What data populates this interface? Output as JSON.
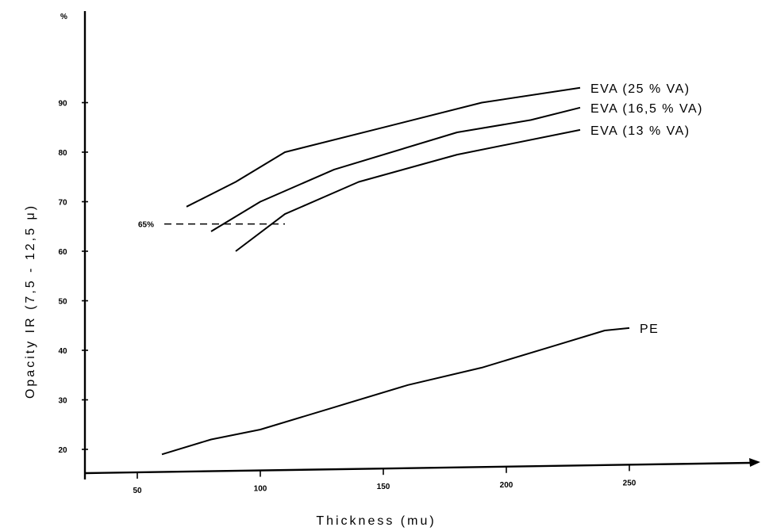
{
  "chart_data": {
    "type": "line",
    "title": "",
    "xlabel": "Thickness (mu)",
    "ylabel": "Opacity IR (7,5 - 12,5 μ)",
    "y_unit": "%",
    "xlim": [
      27,
      285
    ],
    "ylim": [
      15,
      100
    ],
    "x_ticks": [
      50,
      100,
      150,
      200,
      250
    ],
    "y_ticks": [
      20,
      30,
      40,
      50,
      60,
      70,
      80,
      90
    ],
    "grid": false,
    "legend": "labels at line ends",
    "series": [
      {
        "name": "EVA (25% VA)",
        "label": "EVA (25 % VA)",
        "x": [
          70,
          90,
          110,
          150,
          190,
          230
        ],
        "y": [
          69,
          74,
          80,
          85,
          90,
          93
        ]
      },
      {
        "name": "EVA (16,5% VA)",
        "label": "EVA (16,5 % VA)",
        "x": [
          80,
          100,
          130,
          180,
          210,
          230
        ],
        "y": [
          64,
          70,
          76.5,
          84,
          86.5,
          89
        ]
      },
      {
        "name": "EVA (13% VA)",
        "label": "EVA (13 % VA)",
        "x": [
          90,
          110,
          140,
          180,
          230
        ],
        "y": [
          60,
          67.5,
          74,
          79.5,
          84.5
        ]
      },
      {
        "name": "PE",
        "label": "PE",
        "x": [
          60,
          80,
          100,
          130,
          160,
          190,
          220,
          240,
          250
        ],
        "y": [
          19,
          22,
          24,
          28.5,
          33,
          36.5,
          41,
          44,
          44.5
        ]
      }
    ],
    "annotations": [
      {
        "text": "65%",
        "y": 65.5,
        "x_end": 110,
        "style": "dashed"
      }
    ]
  }
}
